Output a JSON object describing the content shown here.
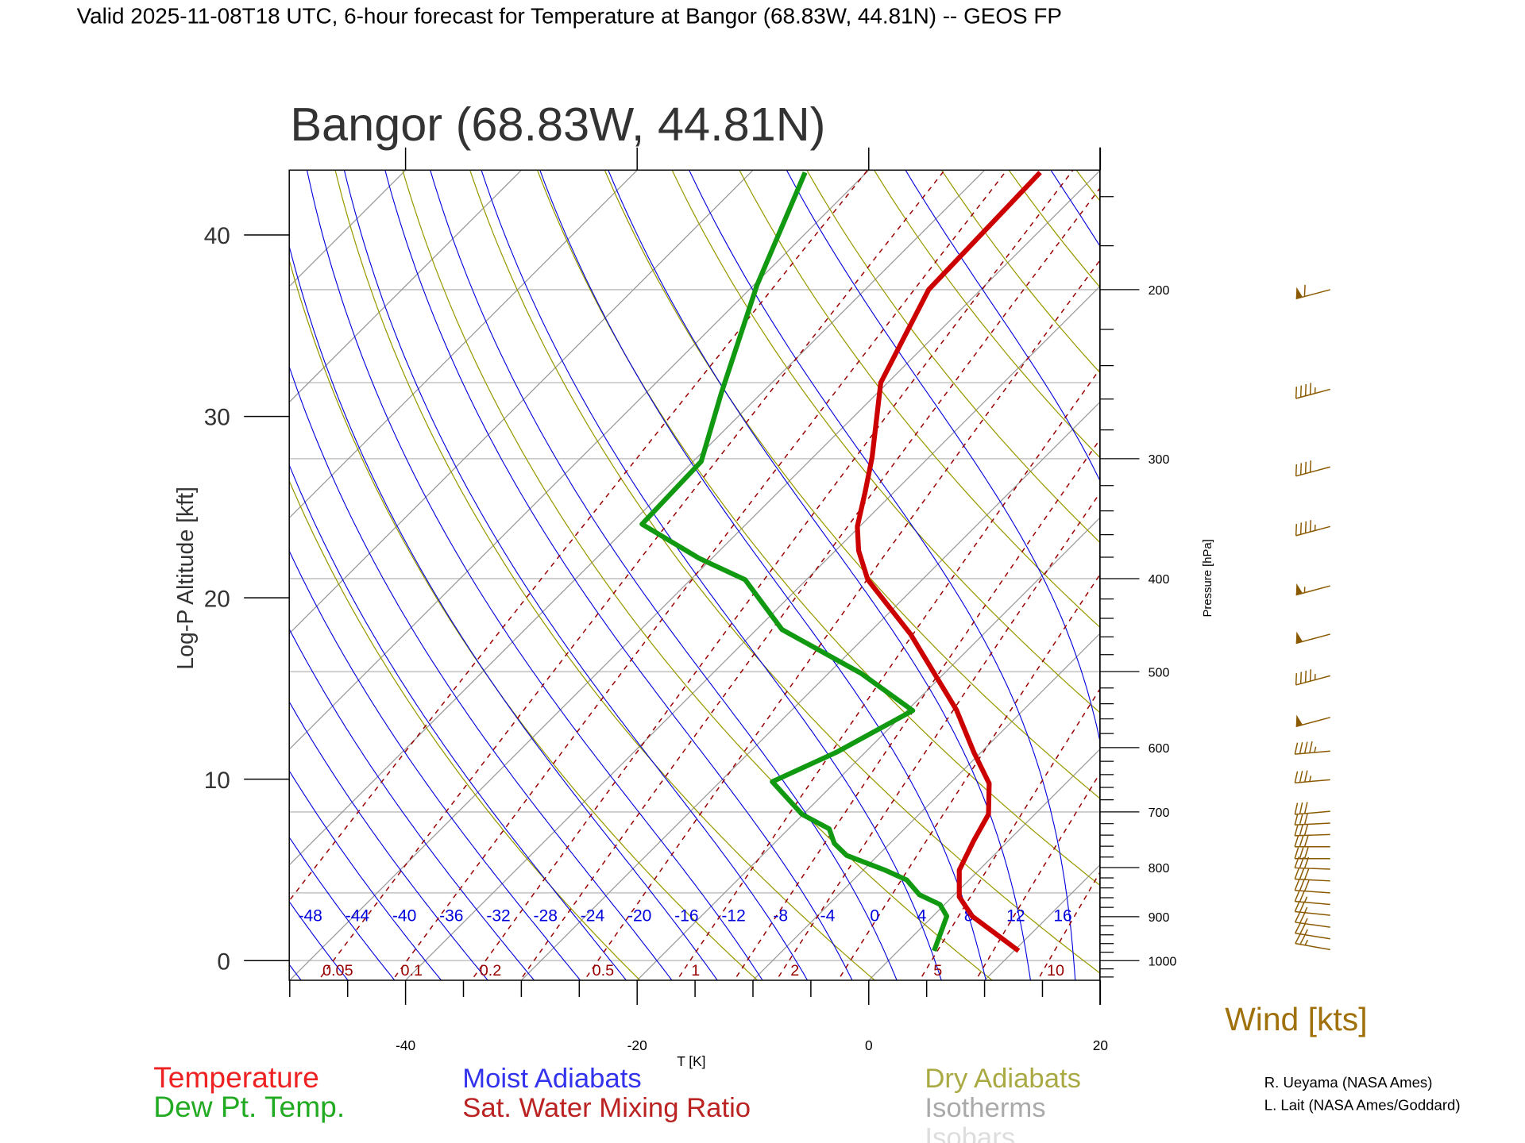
{
  "header": {
    "title": "Valid 2025-11-08T18 UTC, 6-hour forecast for Temperature at Bangor (68.83W, 44.81N) -- GEOS FP"
  },
  "chart_data": {
    "type": "line",
    "subtype": "skew-T log-p diagram",
    "title": "Bangor (68.83W, 44.81N)",
    "xlabel": "T [K]",
    "ylabel_left": "Log-P Altitude [kft]",
    "ylabel_right": "Pressure [hPa]",
    "xlim": [
      -50,
      20
    ],
    "pressure_range_hpa": [
      1048,
      151
    ],
    "x_ticks": [
      -40,
      -20,
      0,
      20
    ],
    "altitude_ticks_kft": [
      0,
      10,
      20,
      30,
      40
    ],
    "pressure_ticks": [
      1000,
      900,
      800,
      700,
      600,
      500,
      400,
      300,
      200
    ],
    "isobars_hpa": [
      1000,
      850,
      700,
      500,
      400,
      300,
      250,
      200
    ],
    "isotherm_step_c": 10,
    "dry_adiabat_thetas_k": [
      250,
      260,
      270,
      280,
      290,
      300,
      310,
      320,
      330,
      340,
      350,
      360,
      370,
      380,
      390,
      400,
      410,
      420,
      430,
      440,
      450
    ],
    "moist_adiabat_labels": [
      -48,
      -44,
      -40,
      -36,
      -32,
      -28,
      -24,
      -20,
      -16,
      -12,
      -8,
      -4,
      0,
      4,
      8,
      12,
      16
    ],
    "mixing_ratio_lines_gkg": [
      0.02,
      0.05,
      0.1,
      0.2,
      0.3,
      0.5,
      1,
      1.5,
      2,
      3,
      5,
      7,
      10,
      15,
      20
    ],
    "mixing_ratio_labels": [
      "0.05",
      "0.1",
      "0.2",
      "0.5",
      "1",
      "2",
      "5",
      "10"
    ],
    "series": [
      {
        "name": "Temperature",
        "color": "#cc0000",
        "pressure": [
          977,
          899,
          858,
          805,
          750,
          704,
          654,
          607,
          548,
          457,
          401,
          374,
          353,
          325,
          299,
          250,
          200,
          151
        ],
        "values": [
          10.4,
          3.4,
          0.6,
          -1.7,
          -3.0,
          -4.0,
          -6.6,
          -10.6,
          -15.8,
          -26.3,
          -34.7,
          -38.0,
          -40.2,
          -42.5,
          -44.9,
          -50.6,
          -54.5,
          -55.0
        ]
      },
      {
        "name": "Dew Pt. Temp.",
        "color": "#119911",
        "pressure": [
          977,
          899,
          874,
          854,
          824,
          805,
          777,
          755,
          729,
          704,
          651,
          607,
          549,
          502,
          452,
          401,
          381,
          351,
          302,
          256,
          198,
          151
        ],
        "values": [
          3.1,
          1.2,
          -0.4,
          -3.0,
          -5.4,
          -8.1,
          -12.7,
          -14.8,
          -16.5,
          -20.1,
          -25.5,
          -22.5,
          -19.5,
          -27.2,
          -37.8,
          -45.3,
          -51.1,
          -59.0,
          -59.3,
          -63.5,
          -69.7,
          -75.3
        ]
      }
    ],
    "wind": {
      "label": "Wind [kts]",
      "barbs": [
        {
          "pressure": 200,
          "speed": 60,
          "direction": 255
        },
        {
          "pressure": 254,
          "speed": 45,
          "direction": 255
        },
        {
          "pressure": 306,
          "speed": 40,
          "direction": 255
        },
        {
          "pressure": 353,
          "speed": 45,
          "direction": 255
        },
        {
          "pressure": 407,
          "speed": 55,
          "direction": 255
        },
        {
          "pressure": 457,
          "speed": 50,
          "direction": 255
        },
        {
          "pressure": 505,
          "speed": 45,
          "direction": 255
        },
        {
          "pressure": 558,
          "speed": 50,
          "direction": 255
        },
        {
          "pressure": 605,
          "speed": 45,
          "direction": 265
        },
        {
          "pressure": 648,
          "speed": 35,
          "direction": 265
        },
        {
          "pressure": 699,
          "speed": 30,
          "direction": 265
        },
        {
          "pressure": 719,
          "speed": 30,
          "direction": 267
        },
        {
          "pressure": 739,
          "speed": 30,
          "direction": 268
        },
        {
          "pressure": 761,
          "speed": 30,
          "direction": 270
        },
        {
          "pressure": 783,
          "speed": 30,
          "direction": 270
        },
        {
          "pressure": 803,
          "speed": 30,
          "direction": 272
        },
        {
          "pressure": 826,
          "speed": 30,
          "direction": 273
        },
        {
          "pressure": 850,
          "speed": 30,
          "direction": 274
        },
        {
          "pressure": 874,
          "speed": 25,
          "direction": 275
        },
        {
          "pressure": 897,
          "speed": 25,
          "direction": 276
        },
        {
          "pressure": 923,
          "speed": 25,
          "direction": 278
        },
        {
          "pressure": 949,
          "speed": 25,
          "direction": 279
        },
        {
          "pressure": 974,
          "speed": 25,
          "direction": 280
        }
      ]
    },
    "colors": {
      "temperature": "#cc0000",
      "dewpoint": "#119911",
      "moist_adiabats": "#0000dd",
      "mixing_ratio": "#990000",
      "dry_adiabats": "#999900",
      "isotherms": "#999999",
      "isobars": "#cccccc",
      "wind": "#8b5a00"
    }
  },
  "legend": {
    "temperature": "Temperature",
    "dewpoint": "Dew Pt. Temp.",
    "moist_adiabats": "Moist Adiabats",
    "mixing_ratio": "Sat. Water Mixing Ratio",
    "dry_adiabats": "Dry Adiabats",
    "isotherms": "Isotherms",
    "isobars": "Isobars"
  },
  "credits": [
    "R. Ueyama (NASA Ames)",
    "L. Lait (NASA Ames/Goddard)"
  ]
}
